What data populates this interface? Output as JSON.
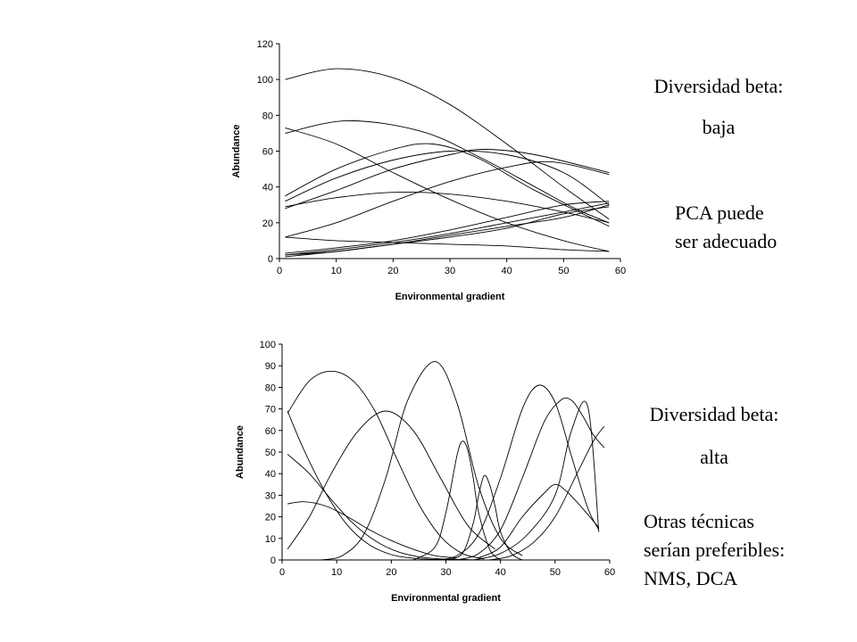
{
  "chart_data": [
    {
      "type": "line",
      "xlabel": "Environmental gradient",
      "ylabel": "Abundance",
      "xlim": [
        0,
        60
      ],
      "ylim": [
        0,
        120
      ],
      "xticks": [
        0,
        10,
        20,
        30,
        40,
        50,
        60
      ],
      "yticks": [
        0,
        20,
        40,
        60,
        80,
        100,
        120
      ],
      "grid": false,
      "series": [
        {
          "x": [
            1,
            10,
            20,
            30,
            40,
            50,
            58
          ],
          "values": [
            100,
            106,
            101,
            86,
            64,
            40,
            22
          ]
        },
        {
          "x": [
            1,
            12,
            25,
            35,
            45,
            52,
            58
          ],
          "values": [
            70,
            77,
            71,
            57,
            40,
            28,
            20
          ]
        },
        {
          "x": [
            1,
            10,
            20,
            30,
            40,
            50,
            58
          ],
          "values": [
            73,
            64,
            48,
            33,
            20,
            10,
            4
          ]
        },
        {
          "x": [
            1,
            10,
            20,
            27,
            35,
            45,
            58
          ],
          "values": [
            35,
            50,
            61,
            64,
            56,
            38,
            18
          ]
        },
        {
          "x": [
            1,
            10,
            20,
            30,
            40,
            50,
            58
          ],
          "values": [
            32,
            45,
            55,
            60,
            58,
            48,
            30
          ]
        },
        {
          "x": [
            1,
            10,
            20,
            30,
            40,
            50,
            58
          ],
          "values": [
            29,
            34,
            37,
            36,
            32,
            26,
            20
          ]
        },
        {
          "x": [
            1,
            10,
            20,
            30,
            36,
            45,
            58
          ],
          "values": [
            28,
            38,
            50,
            58,
            61,
            58,
            48
          ]
        },
        {
          "x": [
            1,
            10,
            20,
            30,
            40,
            48,
            58
          ],
          "values": [
            12,
            20,
            32,
            43,
            51,
            54,
            47
          ]
        },
        {
          "x": [
            1,
            10,
            20,
            30,
            40,
            50,
            58
          ],
          "values": [
            12,
            10,
            9,
            8,
            7,
            5,
            4
          ]
        },
        {
          "x": [
            1,
            10,
            20,
            30,
            40,
            50,
            58
          ],
          "values": [
            3,
            6,
            10,
            16,
            23,
            30,
            32
          ]
        },
        {
          "x": [
            1,
            10,
            20,
            30,
            40,
            50,
            58
          ],
          "values": [
            2,
            5,
            9,
            14,
            20,
            26,
            31
          ]
        },
        {
          "x": [
            1,
            10,
            20,
            30,
            40,
            50,
            58
          ],
          "values": [
            1,
            4,
            8,
            13,
            18,
            23,
            30
          ]
        },
        {
          "x": [
            1,
            10,
            20,
            30,
            40,
            50,
            58
          ],
          "values": [
            2,
            4,
            8,
            12,
            17,
            25,
            29
          ]
        }
      ]
    },
    {
      "type": "line",
      "xlabel": "Environmental gradient",
      "ylabel": "Abundance",
      "xlim": [
        0,
        60
      ],
      "ylim": [
        0,
        100
      ],
      "xticks": [
        0,
        10,
        20,
        30,
        40,
        50,
        60
      ],
      "yticks": [
        0,
        10,
        20,
        30,
        40,
        50,
        60,
        70,
        80,
        90,
        100
      ],
      "grid": false,
      "series": [
        {
          "x": [
            1,
            5,
            9,
            13,
            17,
            21,
            25,
            29,
            33,
            37
          ],
          "values": [
            68,
            83,
            87.5,
            83,
            69,
            47,
            26,
            11,
            3,
            0.5
          ]
        },
        {
          "x": [
            1,
            4,
            8,
            12,
            16,
            20,
            24,
            28,
            32
          ],
          "values": [
            69,
            51,
            31,
            16,
            7,
            2.5,
            0.8,
            0.2,
            0
          ]
        },
        {
          "x": [
            1,
            5,
            9,
            13,
            17,
            21,
            25,
            29,
            33,
            37,
            41
          ],
          "values": [
            49,
            40,
            28,
            17,
            9,
            4,
            1.5,
            0.5,
            0.2,
            0,
            0
          ]
        },
        {
          "x": [
            1,
            4,
            8,
            12,
            16,
            20,
            24,
            28,
            32
          ],
          "values": [
            26,
            27,
            25,
            20,
            14,
            9,
            5,
            2,
            1
          ]
        },
        {
          "x": [
            1,
            5,
            9,
            14,
            19,
            24,
            29,
            34,
            39
          ],
          "values": [
            5,
            20,
            40,
            60,
            69,
            60,
            38,
            16,
            5
          ]
        },
        {
          "x": [
            7,
            11,
            15,
            19,
            23,
            28,
            32,
            36,
            40,
            44
          ],
          "values": [
            0,
            2,
            12,
            38,
            74,
            92,
            73,
            34,
            10,
            2
          ]
        },
        {
          "x": [
            24,
            28,
            30,
            32,
            33,
            34,
            35,
            36,
            38,
            40
          ],
          "values": [
            0,
            6,
            22,
            48,
            55,
            51,
            38,
            22,
            5,
            0
          ]
        },
        {
          "x": [
            30,
            33,
            35,
            36,
            37,
            38,
            39,
            40,
            42,
            44
          ],
          "values": [
            0,
            3,
            17,
            30,
            39,
            35,
            25,
            13,
            3,
            0
          ]
        },
        {
          "x": [
            28,
            32,
            36,
            40,
            44,
            47,
            50,
            53,
            56,
            58
          ],
          "values": [
            0,
            2,
            12,
            38,
            70,
            81,
            73,
            48,
            24,
            14
          ]
        },
        {
          "x": [
            32,
            36,
            40,
            44,
            48,
            51,
            53,
            55,
            57,
            59
          ],
          "values": [
            0,
            3,
            14,
            38,
            64,
            74,
            74,
            67,
            58,
            52
          ]
        },
        {
          "x": [
            35,
            40,
            45,
            50,
            53,
            56,
            58
          ],
          "values": [
            0,
            3,
            12,
            30,
            60,
            71,
            13
          ]
        },
        {
          "x": [
            36,
            40,
            44,
            48,
            50,
            52,
            55,
            58
          ],
          "values": [
            1,
            6,
            20,
            31,
            35,
            32,
            24,
            15
          ]
        },
        {
          "x": [
            38,
            42,
            46,
            50,
            54,
            57,
            59
          ],
          "values": [
            0,
            2,
            8,
            20,
            40,
            55,
            62
          ]
        }
      ]
    }
  ],
  "annotations": {
    "top_title": "Diversidad beta:",
    "top_level": "baja",
    "top_note_1": "PCA puede",
    "top_note_2": "ser adecuado",
    "bottom_title": "Diversidad beta:",
    "bottom_level": "alta",
    "bottom_note_1": "Otras técnicas",
    "bottom_note_2": "serían preferibles:",
    "bottom_note_3": "NMS, DCA"
  }
}
